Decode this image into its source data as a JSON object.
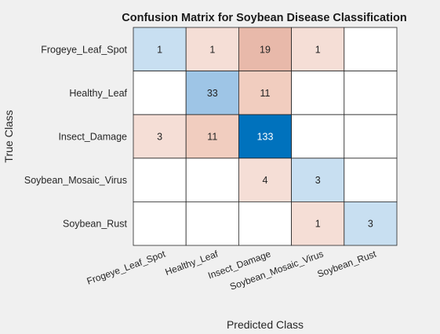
{
  "chart_data": {
    "type": "heatmap",
    "title": "Confusion Matrix for Soybean Disease Classification",
    "xlabel": "Predicted Class",
    "ylabel": "True Class",
    "row_labels": [
      "Frogeye_Leaf_Spot",
      "Healthy_Leaf",
      "Insect_Damage",
      "Soybean_Mosaic_Virus",
      "Soybean_Rust"
    ],
    "col_labels": [
      "Frogeye_Leaf_Spot",
      "Healthy_Leaf",
      "Insect_Damage",
      "Soybean_Mosaic_Virus",
      "Soybean_Rust"
    ],
    "matrix": [
      [
        1,
        1,
        19,
        1,
        null
      ],
      [
        null,
        33,
        11,
        null,
        null
      ],
      [
        3,
        11,
        133,
        null,
        null
      ],
      [
        null,
        null,
        4,
        3,
        null
      ],
      [
        null,
        null,
        null,
        1,
        3
      ]
    ],
    "colors": {
      "background": "#f0f0f0",
      "cell_empty": "#ffffff",
      "grid_line": "#262626",
      "diag_light": "#c8dff1",
      "diag_mid": "#9ec5e6",
      "diag_dark": "#0072bd",
      "off_light": "#f5ded6",
      "off_mid": "#f1cdbf",
      "off_strong": "#e8b9aa"
    }
  }
}
